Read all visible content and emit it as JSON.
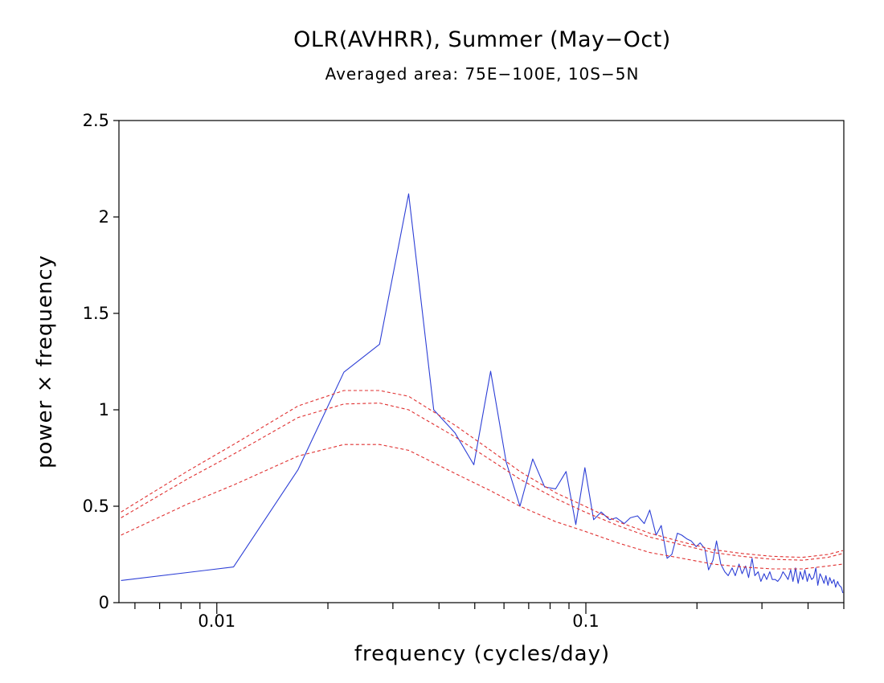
{
  "chart_data": {
    "type": "line",
    "title": "OLR(AVHRR), Summer (May−Oct)",
    "subtitle": "Averaged area: 75E−100E, 10S−5N",
    "xlabel": "frequency (cycles/day)",
    "ylabel": "power × frequency",
    "xscale": "log",
    "xlim": [
      0.00543,
      0.5
    ],
    "ylim": [
      0,
      2.5
    ],
    "xticks": [
      {
        "value": 0.01,
        "label": "0.01"
      },
      {
        "value": 0.1,
        "label": "0.1"
      }
    ],
    "yticks": [
      {
        "value": 0,
        "label": "0"
      },
      {
        "value": 0.5,
        "label": "0.5"
      },
      {
        "value": 1,
        "label": "1"
      },
      {
        "value": 1.5,
        "label": "1.5"
      },
      {
        "value": 2,
        "label": "2"
      },
      {
        "value": 2.5,
        "label": "2.5"
      }
    ],
    "grid": false,
    "legend": "none",
    "series": [
      {
        "color": "#2d3fd6",
        "style": "solid",
        "points": [
          [
            0.0055,
            0.115
          ],
          [
            0.0111,
            0.185
          ],
          [
            0.0166,
            0.69
          ],
          [
            0.0221,
            1.195
          ],
          [
            0.0276,
            1.34
          ],
          [
            0.0331,
            2.12
          ],
          [
            0.0387,
            1.0
          ],
          [
            0.0442,
            0.88
          ],
          [
            0.0497,
            0.715
          ],
          [
            0.0552,
            1.2
          ],
          [
            0.0608,
            0.73
          ],
          [
            0.0663,
            0.5
          ],
          [
            0.0718,
            0.745
          ],
          [
            0.0773,
            0.6
          ],
          [
            0.0828,
            0.59
          ],
          [
            0.0884,
            0.68
          ],
          [
            0.0939,
            0.405
          ],
          [
            0.0994,
            0.7
          ],
          [
            0.105,
            0.43
          ],
          [
            0.11,
            0.47
          ],
          [
            0.116,
            0.43
          ],
          [
            0.121,
            0.44
          ],
          [
            0.127,
            0.41
          ],
          [
            0.132,
            0.44
          ],
          [
            0.138,
            0.45
          ],
          [
            0.144,
            0.41
          ],
          [
            0.149,
            0.48
          ],
          [
            0.155,
            0.35
          ],
          [
            0.16,
            0.4
          ],
          [
            0.166,
            0.23
          ],
          [
            0.171,
            0.25
          ],
          [
            0.177,
            0.36
          ],
          [
            0.182,
            0.35
          ],
          [
            0.188,
            0.33
          ],
          [
            0.193,
            0.32
          ],
          [
            0.199,
            0.29
          ],
          [
            0.204,
            0.31
          ],
          [
            0.21,
            0.28
          ],
          [
            0.215,
            0.17
          ],
          [
            0.221,
            0.22
          ],
          [
            0.226,
            0.32
          ],
          [
            0.232,
            0.2
          ],
          [
            0.238,
            0.16
          ],
          [
            0.243,
            0.14
          ],
          [
            0.249,
            0.18
          ],
          [
            0.254,
            0.14
          ],
          [
            0.26,
            0.2
          ],
          [
            0.265,
            0.15
          ],
          [
            0.271,
            0.19
          ],
          [
            0.276,
            0.13
          ],
          [
            0.282,
            0.23
          ],
          [
            0.287,
            0.14
          ],
          [
            0.293,
            0.16
          ],
          [
            0.298,
            0.11
          ],
          [
            0.304,
            0.15
          ],
          [
            0.309,
            0.12
          ],
          [
            0.315,
            0.16
          ],
          [
            0.32,
            0.12
          ],
          [
            0.326,
            0.12
          ],
          [
            0.331,
            0.11
          ],
          [
            0.337,
            0.13
          ],
          [
            0.342,
            0.16
          ],
          [
            0.348,
            0.14
          ],
          [
            0.353,
            0.12
          ],
          [
            0.359,
            0.17
          ],
          [
            0.364,
            0.11
          ],
          [
            0.37,
            0.18
          ],
          [
            0.376,
            0.1
          ],
          [
            0.381,
            0.16
          ],
          [
            0.387,
            0.12
          ],
          [
            0.392,
            0.17
          ],
          [
            0.398,
            0.11
          ],
          [
            0.403,
            0.15
          ],
          [
            0.409,
            0.12
          ],
          [
            0.414,
            0.13
          ],
          [
            0.42,
            0.18
          ],
          [
            0.425,
            0.09
          ],
          [
            0.431,
            0.15
          ],
          [
            0.436,
            0.13
          ],
          [
            0.442,
            0.1
          ],
          [
            0.447,
            0.14
          ],
          [
            0.453,
            0.09
          ],
          [
            0.458,
            0.13
          ],
          [
            0.464,
            0.1
          ],
          [
            0.47,
            0.12
          ],
          [
            0.475,
            0.08
          ],
          [
            0.481,
            0.11
          ],
          [
            0.486,
            0.09
          ],
          [
            0.492,
            0.08
          ],
          [
            0.497,
            0.05
          ]
        ]
      },
      {
        "color": "#e03030",
        "style": "dashed",
        "points": [
          [
            0.0055,
            0.35
          ],
          [
            0.0083,
            0.51
          ],
          [
            0.0111,
            0.61
          ],
          [
            0.0166,
            0.76
          ],
          [
            0.0221,
            0.82
          ],
          [
            0.0276,
            0.82
          ],
          [
            0.0331,
            0.79
          ],
          [
            0.0442,
            0.67
          ],
          [
            0.0552,
            0.58
          ],
          [
            0.0663,
            0.5
          ],
          [
            0.0828,
            0.42
          ],
          [
            0.0994,
            0.37
          ],
          [
            0.122,
            0.31
          ],
          [
            0.149,
            0.26
          ],
          [
            0.182,
            0.23
          ],
          [
            0.221,
            0.2
          ],
          [
            0.265,
            0.185
          ],
          [
            0.32,
            0.175
          ],
          [
            0.387,
            0.175
          ],
          [
            0.453,
            0.19
          ],
          [
            0.497,
            0.2
          ]
        ]
      },
      {
        "color": "#e03030",
        "style": "dashed",
        "points": [
          [
            0.0055,
            0.44
          ],
          [
            0.0083,
            0.64
          ],
          [
            0.0111,
            0.77
          ],
          [
            0.0166,
            0.96
          ],
          [
            0.0221,
            1.03
          ],
          [
            0.0276,
            1.035
          ],
          [
            0.0331,
            1.0
          ],
          [
            0.0442,
            0.86
          ],
          [
            0.0552,
            0.74
          ],
          [
            0.0663,
            0.64
          ],
          [
            0.0828,
            0.54
          ],
          [
            0.0994,
            0.47
          ],
          [
            0.122,
            0.4
          ],
          [
            0.149,
            0.34
          ],
          [
            0.182,
            0.3
          ],
          [
            0.221,
            0.26
          ],
          [
            0.265,
            0.24
          ],
          [
            0.32,
            0.225
          ],
          [
            0.387,
            0.22
          ],
          [
            0.453,
            0.235
          ],
          [
            0.497,
            0.255
          ]
        ]
      },
      {
        "color": "#e03030",
        "style": "dashed",
        "points": [
          [
            0.0055,
            0.47
          ],
          [
            0.0083,
            0.68
          ],
          [
            0.0111,
            0.82
          ],
          [
            0.0166,
            1.02
          ],
          [
            0.0221,
            1.1
          ],
          [
            0.0276,
            1.1
          ],
          [
            0.0331,
            1.07
          ],
          [
            0.0442,
            0.92
          ],
          [
            0.0552,
            0.79
          ],
          [
            0.0663,
            0.68
          ],
          [
            0.0828,
            0.57
          ],
          [
            0.0994,
            0.5
          ],
          [
            0.122,
            0.42
          ],
          [
            0.149,
            0.36
          ],
          [
            0.182,
            0.315
          ],
          [
            0.221,
            0.275
          ],
          [
            0.265,
            0.255
          ],
          [
            0.32,
            0.24
          ],
          [
            0.387,
            0.235
          ],
          [
            0.453,
            0.25
          ],
          [
            0.497,
            0.27
          ]
        ]
      }
    ]
  }
}
